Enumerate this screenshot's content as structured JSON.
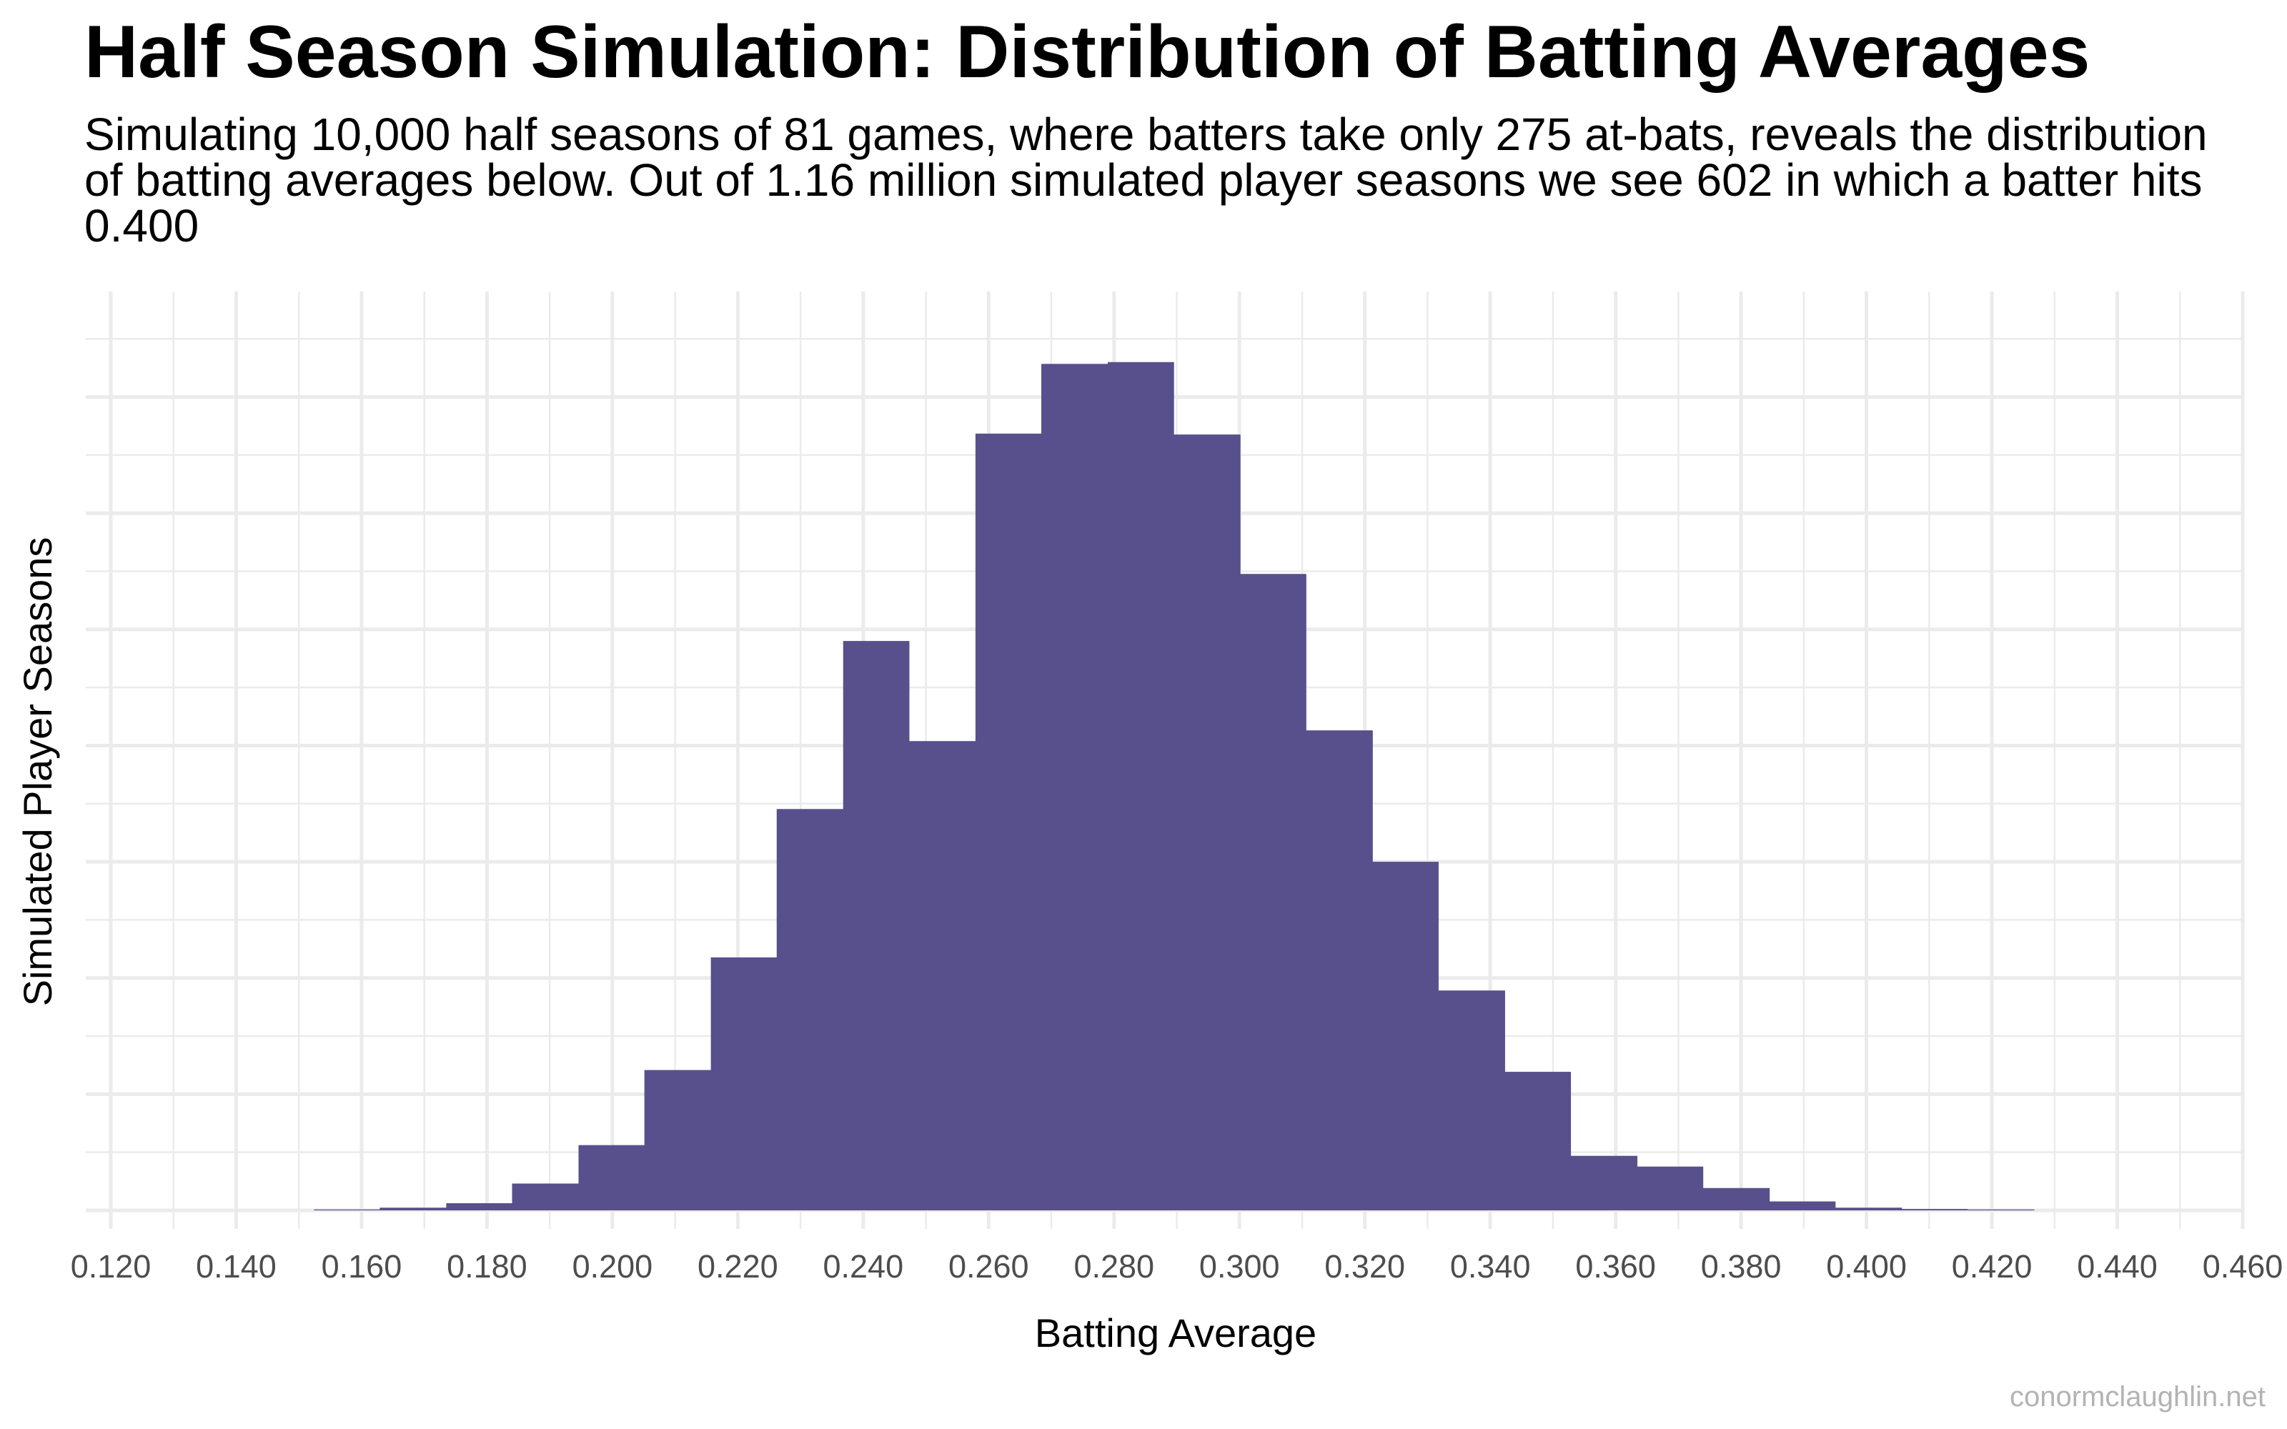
{
  "chart_data": {
    "type": "bar",
    "title": "Half Season Simulation: Distribution of Batting Averages",
    "subtitle": "Simulating 10,000 half seasons of 81 games, where batters take only 275 at-bats, reveals the distribution of batting averages below. Out of 1.16 million simulated player seasons we see 602 in which a batter hits 0.400",
    "xlabel": "Batting Average",
    "ylabel": "Simulated Player Seasons",
    "xlim": [
      0.12,
      0.46
    ],
    "x_ticks": [
      "0.120",
      "0.140",
      "0.160",
      "0.180",
      "0.200",
      "0.220",
      "0.240",
      "0.260",
      "0.280",
      "0.300",
      "0.320",
      "0.340",
      "0.360",
      "0.380",
      "0.400",
      "0.420",
      "0.440",
      "0.460"
    ],
    "y_tick_labels_shown": false,
    "ylim": [
      0,
      9.8
    ],
    "grid": true,
    "bar_color": "#58508d",
    "bins": [
      {
        "x0": 0.1524,
        "x1": 0.1629,
        "value": 0.01
      },
      {
        "x0": 0.1629,
        "x1": 0.1735,
        "value": 0.03
      },
      {
        "x0": 0.1735,
        "x1": 0.184,
        "value": 0.08
      },
      {
        "x0": 0.184,
        "x1": 0.1946,
        "value": 0.3
      },
      {
        "x0": 0.1946,
        "x1": 0.2051,
        "value": 0.73
      },
      {
        "x0": 0.2051,
        "x1": 0.2157,
        "value": 1.57
      },
      {
        "x0": 0.2157,
        "x1": 0.2262,
        "value": 2.83
      },
      {
        "x0": 0.2262,
        "x1": 0.2368,
        "value": 4.49
      },
      {
        "x0": 0.2368,
        "x1": 0.2473,
        "value": 6.37
      },
      {
        "x0": 0.2473,
        "x1": 0.2579,
        "value": 5.25
      },
      {
        "x0": 0.2579,
        "x1": 0.2684,
        "value": 8.69
      },
      {
        "x0": 0.2684,
        "x1": 0.279,
        "value": 9.47
      },
      {
        "x0": 0.279,
        "x1": 0.2895,
        "value": 9.49
      },
      {
        "x0": 0.2895,
        "x1": 0.3001,
        "value": 8.68
      },
      {
        "x0": 0.3001,
        "x1": 0.3106,
        "value": 7.12
      },
      {
        "x0": 0.3106,
        "x1": 0.3212,
        "value": 5.37
      },
      {
        "x0": 0.3212,
        "x1": 0.3317,
        "value": 3.9
      },
      {
        "x0": 0.3317,
        "x1": 0.3423,
        "value": 2.46
      },
      {
        "x0": 0.3423,
        "x1": 0.3528,
        "value": 1.55
      },
      {
        "x0": 0.3528,
        "x1": 0.3634,
        "value": 0.61
      },
      {
        "x0": 0.3634,
        "x1": 0.3739,
        "value": 0.49
      },
      {
        "x0": 0.3739,
        "x1": 0.3845,
        "value": 0.25
      },
      {
        "x0": 0.3845,
        "x1": 0.395,
        "value": 0.1
      },
      {
        "x0": 0.395,
        "x1": 0.4056,
        "value": 0.03
      },
      {
        "x0": 0.4056,
        "x1": 0.4161,
        "value": 0.015
      },
      {
        "x0": 0.4161,
        "x1": 0.4267,
        "value": 0.01
      }
    ]
  },
  "watermark": "conormclaughlin.net"
}
